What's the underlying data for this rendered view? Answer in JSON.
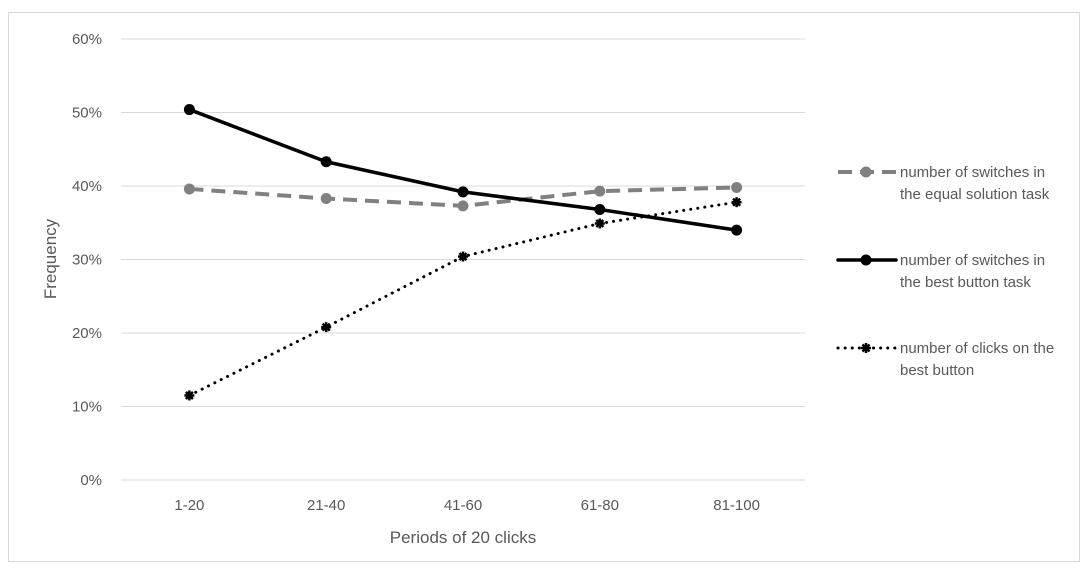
{
  "chart_data": {
    "type": "line",
    "categories": [
      "1-20",
      "21-40",
      "41-60",
      "61-80",
      "81-100"
    ],
    "xlabel": "Periods of 20 clicks",
    "ylabel": "Frequency",
    "ylim": [
      0,
      60
    ],
    "yticks": [
      0,
      10,
      20,
      30,
      40,
      50,
      60
    ],
    "ytick_labels": [
      "0%",
      "10%",
      "20%",
      "30%",
      "40%",
      "50%",
      "60%"
    ],
    "grid": true,
    "legend_position": "right",
    "series": [
      {
        "name": "number of switches in the equal solution task",
        "legend_lines": [
          "number of switches in",
          "the equal solution task"
        ],
        "values": [
          39.6,
          38.3,
          37.3,
          39.3,
          39.8
        ],
        "color": "#808080",
        "style": "dashed"
      },
      {
        "name": "number of switches in the best button task",
        "legend_lines": [
          "number of switches in",
          "the best button task"
        ],
        "values": [
          50.4,
          43.3,
          39.2,
          36.8,
          34.0
        ],
        "color": "#000000",
        "style": "solid"
      },
      {
        "name": "number of clicks on the best button",
        "legend_lines": [
          "number of clicks on the",
          "best button"
        ],
        "values": [
          11.5,
          20.8,
          30.4,
          34.9,
          37.8
        ],
        "color": "#000000",
        "style": "dotted"
      }
    ]
  }
}
